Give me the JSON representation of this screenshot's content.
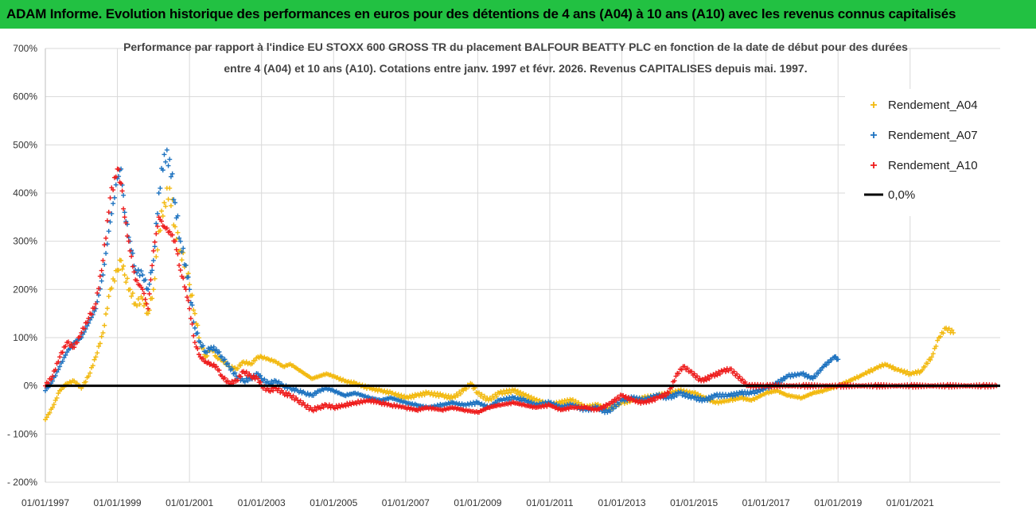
{
  "banner": {
    "title": "ADAM Informe. Evolution historique des performances en euros pour des détentions de 4 ans (A04) à 10 ans (A10) avec les revenus connus capitalisés"
  },
  "colors": {
    "banner_bg": "#22c142",
    "A04": "#f2b90f",
    "A07": "#1e73c0",
    "A10": "#ee1c1c",
    "zero": "#000000",
    "grid": "#d9d9d9"
  },
  "chart_data": {
    "type": "scatter",
    "title_line1": "Performance par rapport à l'indice EU STOXX 600 GROSS TR  du placement BALFOUR BEATTY PLC en fonction de la date de début pour des durées",
    "title_line2": "entre 4 (A04) et 10 ans (A10).  Cotations entre janv. 1997 et févr. 2026. Revenus CAPITALISES depuis mai. 1997.",
    "xlabel": "",
    "ylabel": "",
    "xlim": [
      1997.0,
      2023.5
    ],
    "ylim": [
      -200,
      700
    ],
    "yticks": [
      -200,
      -100,
      0,
      100,
      200,
      300,
      400,
      500,
      600,
      700
    ],
    "ytick_labels": [
      "- 200%",
      "- 100%",
      "0%",
      "100%",
      "200%",
      "300%",
      "400%",
      "500%",
      "600%",
      "700%"
    ],
    "xticks": [
      1997,
      1999,
      2001,
      2003,
      2005,
      2007,
      2009,
      2011,
      2013,
      2015,
      2017,
      2019,
      2021
    ],
    "xtick_labels": [
      "01/01/1997",
      "01/01/1999",
      "01/01/2001",
      "01/01/2003",
      "01/01/2005",
      "01/01/2007",
      "01/01/2009",
      "01/01/2011",
      "01/01/2013",
      "01/01/2015",
      "01/01/2017",
      "01/01/2019",
      "01/01/2021"
    ],
    "grid": true,
    "legend_position": "top-right",
    "series": [
      {
        "name": "Rendement_A04",
        "marker": "+",
        "points": [
          [
            1997.0,
            -70
          ],
          [
            1997.2,
            -45
          ],
          [
            1997.4,
            -10
          ],
          [
            1997.6,
            5
          ],
          [
            1997.8,
            10
          ],
          [
            1998.0,
            -5
          ],
          [
            1998.2,
            20
          ],
          [
            1998.4,
            60
          ],
          [
            1998.6,
            110
          ],
          [
            1998.8,
            200
          ],
          [
            1999.0,
            240
          ],
          [
            1999.1,
            260
          ],
          [
            1999.2,
            230
          ],
          [
            1999.35,
            200
          ],
          [
            1999.5,
            170
          ],
          [
            1999.7,
            180
          ],
          [
            1999.85,
            150
          ],
          [
            2000.0,
            200
          ],
          [
            2000.15,
            320
          ],
          [
            2000.3,
            380
          ],
          [
            2000.45,
            410
          ],
          [
            2000.6,
            330
          ],
          [
            2000.75,
            280
          ],
          [
            2000.9,
            250
          ],
          [
            2001.0,
            210
          ],
          [
            2001.15,
            150
          ],
          [
            2001.3,
            90
          ],
          [
            2001.45,
            60
          ],
          [
            2001.6,
            80
          ],
          [
            2001.75,
            60
          ],
          [
            2001.9,
            55
          ],
          [
            2002.1,
            40
          ],
          [
            2002.3,
            35
          ],
          [
            2002.5,
            50
          ],
          [
            2002.7,
            45
          ],
          [
            2002.9,
            60
          ],
          [
            2003.0,
            60
          ],
          [
            2003.2,
            55
          ],
          [
            2003.4,
            50
          ],
          [
            2003.6,
            40
          ],
          [
            2003.8,
            45
          ],
          [
            2004.0,
            35
          ],
          [
            2004.2,
            25
          ],
          [
            2004.4,
            15
          ],
          [
            2004.6,
            20
          ],
          [
            2004.8,
            25
          ],
          [
            2005.0,
            20
          ],
          [
            2005.3,
            10
          ],
          [
            2005.6,
            5
          ],
          [
            2006.0,
            -5
          ],
          [
            2006.3,
            -10
          ],
          [
            2006.6,
            -15
          ],
          [
            2007.0,
            -25
          ],
          [
            2007.3,
            -20
          ],
          [
            2007.6,
            -15
          ],
          [
            2008.0,
            -20
          ],
          [
            2008.3,
            -25
          ],
          [
            2008.6,
            -10
          ],
          [
            2008.8,
            5
          ],
          [
            2009.0,
            -15
          ],
          [
            2009.3,
            -30
          ],
          [
            2009.6,
            -15
          ],
          [
            2010.0,
            -10
          ],
          [
            2010.3,
            -20
          ],
          [
            2010.6,
            -30
          ],
          [
            2011.0,
            -40
          ],
          [
            2011.3,
            -35
          ],
          [
            2011.6,
            -30
          ],
          [
            2012.0,
            -45
          ],
          [
            2012.3,
            -40
          ],
          [
            2012.6,
            -50
          ],
          [
            2013.0,
            -35
          ],
          [
            2013.3,
            -30
          ],
          [
            2013.6,
            -25
          ],
          [
            2014.0,
            -20
          ],
          [
            2014.3,
            -15
          ],
          [
            2014.6,
            -10
          ],
          [
            2015.0,
            -15
          ],
          [
            2015.3,
            -25
          ],
          [
            2015.6,
            -35
          ],
          [
            2016.0,
            -30
          ],
          [
            2016.3,
            -25
          ],
          [
            2016.6,
            -30
          ],
          [
            2017.0,
            -15
          ],
          [
            2017.3,
            -10
          ],
          [
            2017.6,
            -20
          ],
          [
            2018.0,
            -25
          ],
          [
            2018.3,
            -15
          ],
          [
            2018.6,
            -10
          ],
          [
            2019.0,
            0
          ],
          [
            2019.3,
            10
          ],
          [
            2019.6,
            20
          ],
          [
            2020.0,
            35
          ],
          [
            2020.3,
            45
          ],
          [
            2020.6,
            35
          ],
          [
            2021.0,
            25
          ],
          [
            2021.3,
            30
          ],
          [
            2021.6,
            60
          ],
          [
            2021.8,
            100
          ],
          [
            2022.0,
            120
          ],
          [
            2022.2,
            110
          ]
        ]
      },
      {
        "name": "Rendement_A07",
        "marker": "+",
        "points": [
          [
            1997.0,
            -10
          ],
          [
            1997.2,
            10
          ],
          [
            1997.4,
            40
          ],
          [
            1997.6,
            70
          ],
          [
            1997.8,
            90
          ],
          [
            1998.0,
            100
          ],
          [
            1998.2,
            130
          ],
          [
            1998.4,
            160
          ],
          [
            1998.6,
            230
          ],
          [
            1998.8,
            340
          ],
          [
            1999.0,
            430
          ],
          [
            1999.1,
            450
          ],
          [
            1999.2,
            360
          ],
          [
            1999.35,
            300
          ],
          [
            1999.5,
            240
          ],
          [
            1999.7,
            230
          ],
          [
            1999.85,
            200
          ],
          [
            2000.0,
            260
          ],
          [
            2000.15,
            400
          ],
          [
            2000.3,
            480
          ],
          [
            2000.45,
            470
          ],
          [
            2000.6,
            380
          ],
          [
            2000.75,
            300
          ],
          [
            2000.9,
            250
          ],
          [
            2001.0,
            200
          ],
          [
            2001.15,
            120
          ],
          [
            2001.3,
            90
          ],
          [
            2001.45,
            70
          ],
          [
            2001.6,
            80
          ],
          [
            2001.75,
            75
          ],
          [
            2001.9,
            60
          ],
          [
            2002.1,
            40
          ],
          [
            2002.3,
            20
          ],
          [
            2002.5,
            10
          ],
          [
            2002.7,
            15
          ],
          [
            2002.9,
            25
          ],
          [
            2003.0,
            15
          ],
          [
            2003.2,
            5
          ],
          [
            2003.4,
            10
          ],
          [
            2003.6,
            0
          ],
          [
            2003.8,
            -5
          ],
          [
            2004.0,
            -10
          ],
          [
            2004.2,
            -15
          ],
          [
            2004.4,
            -20
          ],
          [
            2004.6,
            -10
          ],
          [
            2004.8,
            -5
          ],
          [
            2005.0,
            -10
          ],
          [
            2005.3,
            -20
          ],
          [
            2005.6,
            -15
          ],
          [
            2006.0,
            -25
          ],
          [
            2006.3,
            -30
          ],
          [
            2006.6,
            -25
          ],
          [
            2007.0,
            -35
          ],
          [
            2007.3,
            -40
          ],
          [
            2007.6,
            -45
          ],
          [
            2008.0,
            -40
          ],
          [
            2008.3,
            -35
          ],
          [
            2008.6,
            -40
          ],
          [
            2009.0,
            -35
          ],
          [
            2009.3,
            -45
          ],
          [
            2009.6,
            -30
          ],
          [
            2010.0,
            -25
          ],
          [
            2010.3,
            -30
          ],
          [
            2010.6,
            -40
          ],
          [
            2011.0,
            -35
          ],
          [
            2011.3,
            -45
          ],
          [
            2011.6,
            -40
          ],
          [
            2012.0,
            -50
          ],
          [
            2012.3,
            -45
          ],
          [
            2012.6,
            -55
          ],
          [
            2013.0,
            -30
          ],
          [
            2013.3,
            -25
          ],
          [
            2013.6,
            -30
          ],
          [
            2014.0,
            -20
          ],
          [
            2014.3,
            -25
          ],
          [
            2014.6,
            -15
          ],
          [
            2015.0,
            -25
          ],
          [
            2015.3,
            -30
          ],
          [
            2015.6,
            -20
          ],
          [
            2016.0,
            -20
          ],
          [
            2016.3,
            -15
          ],
          [
            2016.6,
            -15
          ],
          [
            2017.0,
            -5
          ],
          [
            2017.3,
            5
          ],
          [
            2017.6,
            20
          ],
          [
            2018.0,
            25
          ],
          [
            2018.3,
            15
          ],
          [
            2018.6,
            40
          ],
          [
            2018.9,
            60
          ],
          [
            2019.0,
            55
          ]
        ]
      },
      {
        "name": "Rendement_A10",
        "marker": "+",
        "points": [
          [
            1997.0,
            0
          ],
          [
            1997.2,
            20
          ],
          [
            1997.4,
            60
          ],
          [
            1997.6,
            90
          ],
          [
            1997.8,
            80
          ],
          [
            1998.0,
            110
          ],
          [
            1998.2,
            140
          ],
          [
            1998.4,
            170
          ],
          [
            1998.6,
            260
          ],
          [
            1998.8,
            390
          ],
          [
            1999.0,
            450
          ],
          [
            1999.1,
            420
          ],
          [
            1999.2,
            350
          ],
          [
            1999.35,
            280
          ],
          [
            1999.5,
            220
          ],
          [
            1999.7,
            200
          ],
          [
            1999.85,
            160
          ],
          [
            2000.0,
            280
          ],
          [
            2000.15,
            350
          ],
          [
            2000.3,
            330
          ],
          [
            2000.45,
            320
          ],
          [
            2000.6,
            300
          ],
          [
            2000.75,
            240
          ],
          [
            2000.9,
            200
          ],
          [
            2001.0,
            160
          ],
          [
            2001.15,
            90
          ],
          [
            2001.3,
            60
          ],
          [
            2001.45,
            50
          ],
          [
            2001.6,
            45
          ],
          [
            2001.75,
            40
          ],
          [
            2001.9,
            20
          ],
          [
            2002.1,
            5
          ],
          [
            2002.3,
            10
          ],
          [
            2002.5,
            30
          ],
          [
            2002.7,
            20
          ],
          [
            2002.9,
            15
          ],
          [
            2003.0,
            0
          ],
          [
            2003.2,
            -10
          ],
          [
            2003.4,
            -5
          ],
          [
            2003.6,
            -15
          ],
          [
            2003.8,
            -20
          ],
          [
            2004.0,
            -30
          ],
          [
            2004.2,
            -40
          ],
          [
            2004.4,
            -50
          ],
          [
            2004.6,
            -45
          ],
          [
            2004.8,
            -40
          ],
          [
            2005.0,
            -45
          ],
          [
            2005.3,
            -40
          ],
          [
            2005.6,
            -35
          ],
          [
            2006.0,
            -30
          ],
          [
            2006.3,
            -35
          ],
          [
            2006.6,
            -40
          ],
          [
            2007.0,
            -45
          ],
          [
            2007.3,
            -50
          ],
          [
            2007.6,
            -45
          ],
          [
            2008.0,
            -50
          ],
          [
            2008.3,
            -45
          ],
          [
            2008.6,
            -50
          ],
          [
            2009.0,
            -55
          ],
          [
            2009.3,
            -45
          ],
          [
            2009.6,
            -40
          ],
          [
            2010.0,
            -35
          ],
          [
            2010.3,
            -40
          ],
          [
            2010.6,
            -45
          ],
          [
            2011.0,
            -40
          ],
          [
            2011.3,
            -50
          ],
          [
            2011.6,
            -45
          ],
          [
            2012.0,
            -45
          ],
          [
            2012.3,
            -50
          ],
          [
            2012.6,
            -40
          ],
          [
            2013.0,
            -20
          ],
          [
            2013.3,
            -30
          ],
          [
            2013.6,
            -35
          ],
          [
            2014.0,
            -25
          ],
          [
            2014.3,
            -15
          ],
          [
            2014.5,
            20
          ],
          [
            2014.7,
            40
          ],
          [
            2014.9,
            30
          ],
          [
            2015.2,
            10
          ],
          [
            2015.5,
            20
          ],
          [
            2015.8,
            30
          ],
          [
            2016.0,
            35
          ],
          [
            2016.5,
            0
          ],
          [
            2017.0,
            0
          ],
          [
            2018.0,
            0
          ],
          [
            2019.0,
            0
          ],
          [
            2020.0,
            0
          ],
          [
            2021.0,
            0
          ],
          [
            2022.0,
            0
          ],
          [
            2023.0,
            0
          ],
          [
            2023.4,
            0
          ]
        ]
      }
    ],
    "reference_line": {
      "name": "0,0%",
      "y": 0
    }
  }
}
